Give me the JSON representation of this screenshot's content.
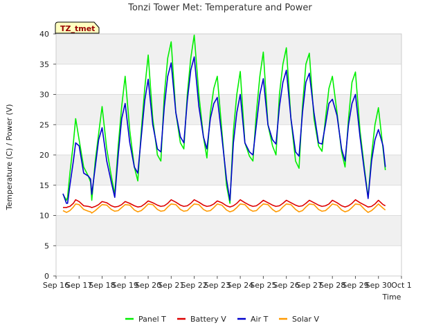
{
  "chart_data": {
    "type": "line",
    "title": "Tonzi Tower Met: Temperature and Power",
    "xlabel": "Time",
    "ylabel": "Temperature (C) / Power (V)",
    "ylim": [
      0,
      40
    ],
    "yticks": [
      0,
      5,
      10,
      15,
      20,
      25,
      30,
      35,
      40
    ],
    "xlim": [
      0,
      15
    ],
    "xtick_labels": [
      "Sep 16",
      "Sep 17",
      "Sep 18",
      "Sep 19",
      "Sep 20",
      "Sep 21",
      "Sep 22",
      "Sep 23",
      "Sep 24",
      "Sep 25",
      "Sep 26",
      "Sep 27",
      "Sep 28",
      "Sep 29",
      "Sep 30",
      "Oct 1"
    ],
    "grid": "horizontal bands",
    "legend_position": "bottom",
    "tag_label": "TZ_tmet",
    "x": [
      0.3,
      0.45,
      0.5,
      0.6,
      0.75,
      0.85,
      1.0,
      1.2,
      1.4,
      1.5,
      1.55,
      1.7,
      1.85,
      2.0,
      2.2,
      2.4,
      2.55,
      2.7,
      2.85,
      3.0,
      3.2,
      3.4,
      3.55,
      3.7,
      3.85,
      4.0,
      4.2,
      4.4,
      4.55,
      4.7,
      4.85,
      5.0,
      5.2,
      5.4,
      5.55,
      5.7,
      5.85,
      6.0,
      6.2,
      6.4,
      6.55,
      6.7,
      6.85,
      7.0,
      7.2,
      7.4,
      7.55,
      7.7,
      7.85,
      8.0,
      8.2,
      8.4,
      8.55,
      8.7,
      8.85,
      9.0,
      9.2,
      9.4,
      9.55,
      9.7,
      9.85,
      10.0,
      10.2,
      10.4,
      10.55,
      10.7,
      10.85,
      11.0,
      11.2,
      11.4,
      11.55,
      11.7,
      11.85,
      12.0,
      12.2,
      12.4,
      12.55,
      12.7,
      12.85,
      13.0,
      13.2,
      13.4,
      13.55,
      13.7,
      13.85,
      14.0,
      14.2,
      14.3
    ],
    "series": [
      {
        "name": "Panel T",
        "color": "#00ee00",
        "values": [
          13.5,
          12.5,
          13.0,
          17.0,
          22.0,
          26.0,
          22.5,
          18.0,
          16.5,
          15.5,
          12.5,
          19.0,
          23.5,
          28.0,
          21.0,
          16.5,
          13.5,
          21.5,
          28.0,
          33.0,
          24.0,
          18.0,
          15.7,
          24.0,
          31.0,
          36.5,
          26.0,
          20.0,
          19.0,
          30.0,
          36.0,
          38.7,
          27.0,
          22.0,
          21.0,
          30.0,
          36.0,
          39.8,
          30.0,
          23.0,
          19.5,
          27.0,
          31.0,
          33.0,
          24.0,
          15.0,
          12.0,
          24.0,
          30.0,
          33.8,
          22.0,
          19.8,
          19.0,
          27.0,
          33.0,
          37.0,
          25.0,
          21.5,
          20.0,
          30.0,
          35.0,
          37.7,
          26.0,
          19.0,
          17.8,
          28.0,
          35.0,
          36.8,
          26.0,
          21.5,
          20.6,
          26.0,
          31.0,
          33.0,
          27.0,
          20.5,
          18.0,
          26.0,
          32.0,
          33.7,
          24.0,
          17.5,
          13.0,
          20.0,
          25.0,
          27.8,
          21.0,
          17.5
        ]
      },
      {
        "name": "Battery V",
        "color": "#dd0000",
        "values": [
          11.3,
          11.3,
          11.4,
          11.5,
          12.0,
          12.6,
          12.3,
          11.6,
          11.5,
          11.4,
          11.3,
          11.5,
          11.8,
          12.3,
          12.1,
          11.6,
          11.4,
          11.5,
          11.8,
          12.3,
          12.0,
          11.6,
          11.4,
          11.5,
          11.9,
          12.4,
          12.1,
          11.7,
          11.5,
          11.6,
          12.0,
          12.6,
          12.2,
          11.7,
          11.5,
          11.6,
          12.0,
          12.6,
          12.2,
          11.7,
          11.5,
          11.6,
          11.9,
          12.4,
          12.1,
          11.6,
          11.4,
          11.6,
          12.0,
          12.6,
          12.1,
          11.7,
          11.5,
          11.6,
          12.0,
          12.5,
          12.1,
          11.7,
          11.5,
          11.6,
          12.0,
          12.5,
          12.1,
          11.7,
          11.5,
          11.6,
          12.0,
          12.5,
          12.1,
          11.7,
          11.5,
          11.6,
          11.9,
          12.5,
          12.1,
          11.6,
          11.4,
          11.6,
          12.0,
          12.6,
          12.1,
          11.7,
          11.4,
          11.5,
          11.9,
          12.5,
          11.8,
          11.6
        ]
      },
      {
        "name": "Air T",
        "color": "#0000cc",
        "values": [
          13.6,
          12.0,
          12.0,
          15.0,
          19.0,
          22.0,
          21.5,
          17.0,
          16.5,
          16.0,
          13.5,
          18.0,
          22.5,
          24.5,
          19.0,
          15.5,
          13.0,
          20.0,
          26.0,
          28.5,
          22.0,
          18.0,
          17.0,
          23.0,
          29.0,
          32.5,
          25.0,
          21.0,
          20.5,
          28.0,
          33.0,
          35.2,
          27.0,
          23.0,
          22.0,
          29.0,
          34.0,
          36.2,
          28.0,
          23.0,
          21.0,
          26.0,
          28.5,
          29.5,
          23.0,
          16.0,
          12.5,
          22.0,
          27.0,
          30.0,
          22.0,
          20.5,
          20.0,
          25.0,
          30.0,
          32.6,
          25.0,
          22.5,
          21.8,
          28.0,
          32.0,
          34.0,
          26.0,
          20.5,
          19.8,
          27.0,
          32.0,
          33.5,
          27.0,
          22.0,
          21.8,
          25.0,
          28.5,
          29.2,
          26.5,
          21.0,
          19.0,
          25.0,
          28.5,
          30.0,
          23.0,
          17.0,
          12.8,
          19.0,
          22.5,
          24.2,
          21.5,
          18.0
        ]
      },
      {
        "name": "Solar V",
        "color": "#ff9900",
        "values": [
          10.8,
          10.5,
          10.6,
          10.8,
          11.4,
          11.9,
          11.8,
          11.0,
          10.7,
          10.6,
          10.4,
          10.8,
          11.3,
          11.8,
          11.7,
          11.0,
          10.7,
          10.8,
          11.3,
          11.8,
          11.7,
          10.9,
          10.6,
          10.8,
          11.3,
          11.9,
          11.8,
          11.0,
          10.7,
          10.8,
          11.4,
          11.9,
          11.8,
          11.0,
          10.7,
          10.8,
          11.4,
          11.9,
          11.8,
          11.0,
          10.7,
          10.8,
          11.3,
          11.9,
          11.7,
          10.9,
          10.6,
          10.8,
          11.3,
          11.9,
          11.8,
          11.0,
          10.7,
          10.8,
          11.4,
          11.9,
          11.8,
          11.0,
          10.6,
          10.8,
          11.4,
          11.9,
          11.8,
          11.0,
          10.6,
          10.8,
          11.4,
          11.9,
          11.8,
          11.0,
          10.7,
          10.8,
          11.3,
          11.9,
          11.7,
          10.9,
          10.6,
          10.8,
          11.3,
          11.9,
          11.8,
          11.0,
          10.5,
          10.8,
          11.3,
          11.9,
          11.2,
          10.9
        ]
      }
    ]
  }
}
